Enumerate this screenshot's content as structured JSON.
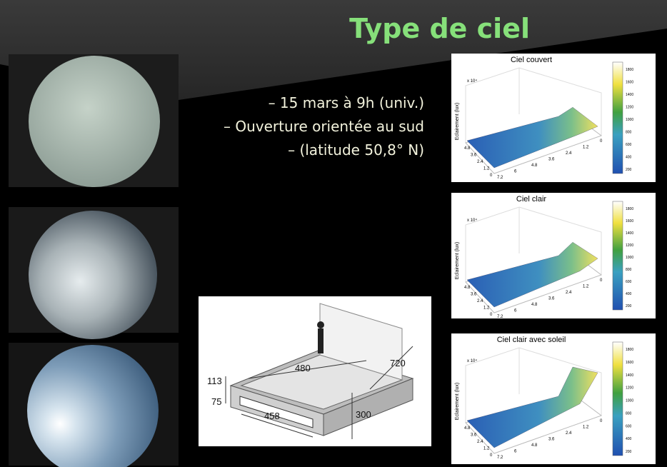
{
  "title": "Type de ciel",
  "bullets": [
    "– 15 mars à 9h (univ.)",
    "– Ouverture orientée au sud",
    "– (latitude 50,8° N)"
  ],
  "diagram": {
    "labels": [
      "480",
      "720",
      "113",
      "75",
      "458",
      "300"
    ]
  },
  "plots": [
    {
      "title": "Ciel couvert",
      "ylabel": "Eclairement (lux)",
      "exponent": "x 10⁴",
      "left_ticks": [
        "4.8",
        "3.6",
        "2.4",
        "1.2",
        "0"
      ],
      "bottom_ticks": [
        "7.2",
        "6",
        "4.8",
        "3.6",
        "2.4",
        "1.2",
        "0"
      ],
      "colorbar_ticks": [
        "1800",
        "1600",
        "1400",
        "1200",
        "1000",
        "800",
        "600",
        "400",
        "200"
      ]
    },
    {
      "title": "Ciel clair",
      "ylabel": "Eclairement (lux)",
      "exponent": "x 10⁴",
      "left_ticks": [
        "4.8",
        "3.6",
        "2.4",
        "1.2",
        "0"
      ],
      "bottom_ticks": [
        "7.2",
        "6",
        "4.8",
        "3.6",
        "2.4",
        "1.2",
        "0"
      ],
      "colorbar_ticks": [
        "1800",
        "1600",
        "1400",
        "1200",
        "1000",
        "800",
        "600",
        "400",
        "200"
      ]
    },
    {
      "title": "Ciel clair avec soleil",
      "ylabel": "Eclairement (lux)",
      "exponent": "x 10⁴",
      "left_ticks": [
        "4.8",
        "3.6",
        "2.4",
        "1.2",
        "0"
      ],
      "bottom_ticks": [
        "7.2",
        "6",
        "4.8",
        "3.6",
        "2.4",
        "1.2",
        "0"
      ],
      "colorbar_ticks": [
        "1800",
        "1600",
        "1400",
        "1200",
        "1000",
        "800",
        "600",
        "400",
        "200"
      ]
    }
  ]
}
